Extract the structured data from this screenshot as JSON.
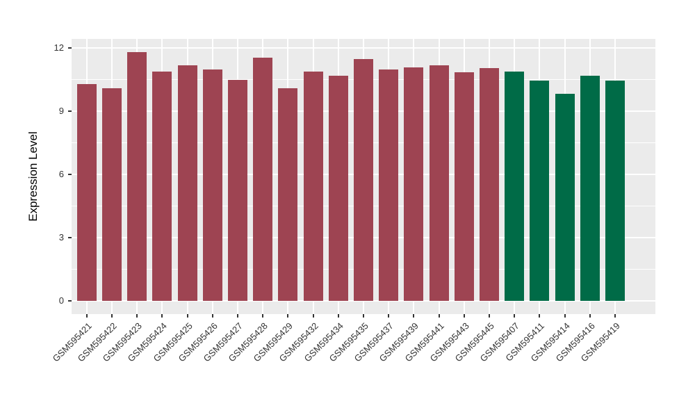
{
  "chart_data": {
    "type": "bar",
    "ylabel": "Expression Level",
    "xlabel": "",
    "ylim": [
      0,
      12.45
    ],
    "yticks": [
      0,
      3,
      6,
      9,
      12
    ],
    "minor_yticks": [
      1.5,
      4.5,
      7.5,
      10.5
    ],
    "grid": true,
    "legend_position": "none",
    "panel_background": "#EBEBEB",
    "gridline_color": "#FFFFFF",
    "axis_text_color": "#333333",
    "axis_title_color": "#000000",
    "tick_mark_color": "#333333",
    "group_colors": {
      "group1": "#9E4452",
      "group2": "#006B47"
    },
    "bars": [
      {
        "label": "GSM595421",
        "value": 10.3,
        "group": "group1"
      },
      {
        "label": "GSM595422",
        "value": 10.1,
        "group": "group1"
      },
      {
        "label": "GSM595423",
        "value": 11.8,
        "group": "group1"
      },
      {
        "label": "GSM595424",
        "value": 10.9,
        "group": "group1"
      },
      {
        "label": "GSM595425",
        "value": 11.2,
        "group": "group1"
      },
      {
        "label": "GSM595426",
        "value": 11.0,
        "group": "group1"
      },
      {
        "label": "GSM595427",
        "value": 10.5,
        "group": "group1"
      },
      {
        "label": "GSM595428",
        "value": 11.55,
        "group": "group1"
      },
      {
        "label": "GSM595429",
        "value": 10.1,
        "group": "group1"
      },
      {
        "label": "GSM595432",
        "value": 10.9,
        "group": "group1"
      },
      {
        "label": "GSM595434",
        "value": 10.7,
        "group": "group1"
      },
      {
        "label": "GSM595435",
        "value": 11.5,
        "group": "group1"
      },
      {
        "label": "GSM595437",
        "value": 11.0,
        "group": "group1"
      },
      {
        "label": "GSM595439",
        "value": 11.1,
        "group": "group1"
      },
      {
        "label": "GSM595441",
        "value": 11.2,
        "group": "group1"
      },
      {
        "label": "GSM595443",
        "value": 10.85,
        "group": "group1"
      },
      {
        "label": "GSM595445",
        "value": 11.05,
        "group": "group1"
      },
      {
        "label": "GSM595407",
        "value": 10.9,
        "group": "group2"
      },
      {
        "label": "GSM595411",
        "value": 10.45,
        "group": "group2"
      },
      {
        "label": "GSM595414",
        "value": 9.85,
        "group": "group2"
      },
      {
        "label": "GSM595416",
        "value": 10.7,
        "group": "group2"
      },
      {
        "label": "GSM595419",
        "value": 10.45,
        "group": "group2"
      }
    ]
  }
}
